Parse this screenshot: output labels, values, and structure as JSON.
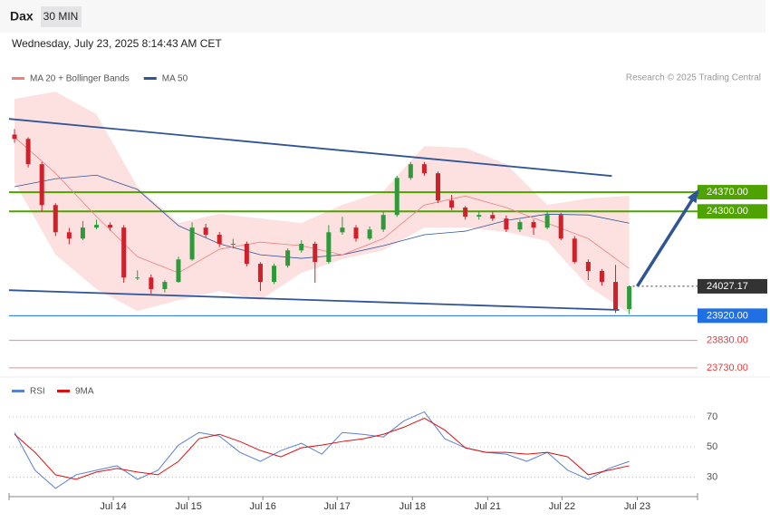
{
  "header": {
    "symbol": "Dax",
    "interval": "30 MIN",
    "timestamp": "Wednesday, July 23, 2025 8:14:43 AM CET",
    "credit": "Research © 2025 Trading Central"
  },
  "chart_data": [
    {
      "type": "candlestick",
      "legend": [
        {
          "name": "MA 20 + Bollinger Bands",
          "color": "#f08080"
        },
        {
          "name": "MA 50",
          "color": "#2f5597"
        }
      ],
      "candles": [
        [
          24580,
          24600,
          24550,
          24564
        ],
        [
          24564,
          24570,
          24460,
          24472
        ],
        [
          24472,
          24480,
          24300,
          24323
        ],
        [
          24323,
          24330,
          24210,
          24224
        ],
        [
          24224,
          24240,
          24180,
          24201
        ],
        [
          24201,
          24265,
          24195,
          24241
        ],
        [
          24241,
          24270,
          24235,
          24251
        ],
        [
          24251,
          24260,
          24230,
          24241
        ],
        [
          24241,
          24250,
          24040,
          24059
        ],
        [
          24059,
          24085,
          24050,
          24059
        ],
        [
          24059,
          24070,
          24000,
          24017
        ],
        [
          24017,
          24050,
          24005,
          24043
        ],
        [
          24043,
          24135,
          24040,
          24125
        ],
        [
          24125,
          24260,
          24120,
          24241
        ],
        [
          24241,
          24255,
          24205,
          24215
        ],
        [
          24215,
          24225,
          24170,
          24182
        ],
        [
          24182,
          24200,
          24165,
          24182
        ],
        [
          24182,
          24190,
          24100,
          24109
        ],
        [
          24109,
          24115,
          24010,
          24043
        ],
        [
          24043,
          24110,
          24035,
          24102
        ],
        [
          24102,
          24165,
          24095,
          24158
        ],
        [
          24158,
          24195,
          24150,
          24182
        ],
        [
          24182,
          24190,
          24040,
          24116
        ],
        [
          24116,
          24250,
          24110,
          24224
        ],
        [
          24224,
          24280,
          24215,
          24241
        ],
        [
          24241,
          24250,
          24190,
          24201
        ],
        [
          24201,
          24245,
          24195,
          24234
        ],
        [
          24234,
          24300,
          24225,
          24287
        ],
        [
          24287,
          24430,
          24280,
          24422
        ],
        [
          24422,
          24480,
          24415,
          24472
        ],
        [
          24472,
          24480,
          24430,
          24439
        ],
        [
          24439,
          24445,
          24330,
          24340
        ],
        [
          24340,
          24360,
          24305,
          24314
        ],
        [
          24314,
          24320,
          24270,
          24281
        ],
        [
          24281,
          24300,
          24270,
          24287
        ],
        [
          24287,
          24300,
          24265,
          24274
        ],
        [
          24274,
          24285,
          24225,
          24234
        ],
        [
          24234,
          24270,
          24225,
          24261
        ],
        [
          24261,
          24270,
          24215,
          24241
        ],
        [
          24241,
          24300,
          24235,
          24287
        ],
        [
          24287,
          24295,
          24195,
          24201
        ],
        [
          24201,
          24210,
          24110,
          24116
        ],
        [
          24116,
          24125,
          24050,
          24083
        ],
        [
          24083,
          24090,
          24030,
          24043
        ],
        [
          24043,
          24105,
          23930,
          23944
        ],
        [
          23944,
          24030,
          23925,
          24027
        ]
      ],
      "up_color": "#2e9a3a",
      "down_color": "#d0202a",
      "overlay_x": [
        0,
        3,
        6,
        9,
        12,
        15,
        18,
        21,
        24,
        27,
        30,
        33,
        36,
        39,
        42,
        45
      ],
      "ma20": [
        24571,
        24439,
        24281,
        24135,
        24076,
        24162,
        24188,
        24175,
        24142,
        24201,
        24323,
        24356,
        24314,
        24257,
        24201,
        24092
      ],
      "ma50": [
        24390,
        24419,
        24432,
        24380,
        24248,
        24182,
        24142,
        24129,
        24142,
        24175,
        24215,
        24228,
        24267,
        24290,
        24287,
        24257
      ],
      "bb_upper": [
        24710,
        24736,
        24654,
        24390,
        24258,
        24291,
        24274,
        24258,
        24324,
        24373,
        24538,
        24531,
        24472,
        24324,
        24347,
        24357
      ],
      "bb_lower": [
        24406,
        24142,
        24017,
        23937,
        23977,
        24010,
        23977,
        24076,
        24126,
        24159,
        24241,
        24241,
        24225,
        24192,
        24027,
        23928
      ],
      "trend_lines": [
        {
          "x": [
            -0.4,
            43.73
          ],
          "values": [
            24637,
            24429
          ],
          "color": "#2f5597"
        },
        {
          "x": [
            -0.4,
            44.26
          ],
          "values": [
            24013,
            23941
          ],
          "color": "#2f5597"
        }
      ],
      "arrow": {
        "x": [
          45.59,
          50
        ],
        "values": [
          24027,
          24373
        ],
        "color": "#2f5597"
      },
      "levels": [
        {
          "value": 24370,
          "label": "24370.00",
          "color": "#4ea300",
          "style": "box"
        },
        {
          "value": 24300,
          "label": "24300.00",
          "color": "#4ea300",
          "style": "box"
        },
        {
          "value": 24027.17,
          "label": "24027.17",
          "color": "#333333",
          "style": "dotted"
        },
        {
          "value": 23920,
          "label": "23920.00",
          "color": "#1f6fe5",
          "style": "box"
        },
        {
          "value": 23830,
          "label": "23830.00",
          "color": "#e04040",
          "style": "text"
        },
        {
          "value": 23730,
          "label": "23730.00",
          "color": "#e04040",
          "style": "text"
        }
      ],
      "xlim": [
        -0.4,
        50
      ],
      "ylim": [
        23700,
        24740
      ],
      "xticks": [
        {
          "value": 7.23,
          "label": "Jul 14"
        },
        {
          "value": 12.74,
          "label": "Jul 15"
        },
        {
          "value": 18.18,
          "label": "Jul 16"
        },
        {
          "value": 23.62,
          "label": "Jul 17"
        },
        {
          "value": 29.13,
          "label": "Jul 18"
        },
        {
          "value": 34.64,
          "label": "Jul 21"
        },
        {
          "value": 40.08,
          "label": "Jul 22"
        },
        {
          "value": 45.59,
          "label": "Jul 23"
        }
      ]
    },
    {
      "type": "line",
      "x": [
        0,
        1.5,
        3,
        4.5,
        6,
        7.5,
        9,
        10.5,
        12,
        13.5,
        15,
        16.5,
        18,
        19.5,
        21,
        22.5,
        24,
        25.5,
        27,
        28.5,
        30,
        31.5,
        33,
        34.5,
        36,
        37.5,
        39,
        40.5,
        42,
        43.5,
        45
      ],
      "series": [
        {
          "name": "RSI",
          "color": "#5b7fd6",
          "values": [
            59.6,
            34.5,
            22.5,
            31.5,
            34.5,
            37.5,
            28.5,
            34.5,
            51.2,
            59.6,
            57.2,
            46.4,
            40.4,
            47.6,
            52.4,
            45.2,
            59.6,
            58.4,
            56.6,
            67.3,
            73.3,
            55.4,
            49.4,
            46.4,
            45.2,
            40.4,
            46.4,
            34.5,
            28.5,
            35.7,
            40.4
          ]
        },
        {
          "name": "9MA",
          "color": "#e01010",
          "values": [
            58.4,
            46.4,
            31.5,
            28.5,
            33.3,
            35.7,
            33.3,
            31.5,
            40.4,
            55.4,
            58.4,
            53.6,
            47.6,
            43.4,
            49.4,
            51.2,
            53.6,
            55.4,
            58.4,
            63.1,
            69.1,
            61.2,
            49.4,
            46.4,
            46.4,
            45.2,
            46.4,
            43.4,
            31.5,
            34.5,
            37.5
          ]
        }
      ],
      "xlim": [
        -0.4,
        50
      ],
      "ylim": [
        17,
        82
      ],
      "yticks": [
        70,
        50,
        30
      ],
      "grid": true
    }
  ]
}
